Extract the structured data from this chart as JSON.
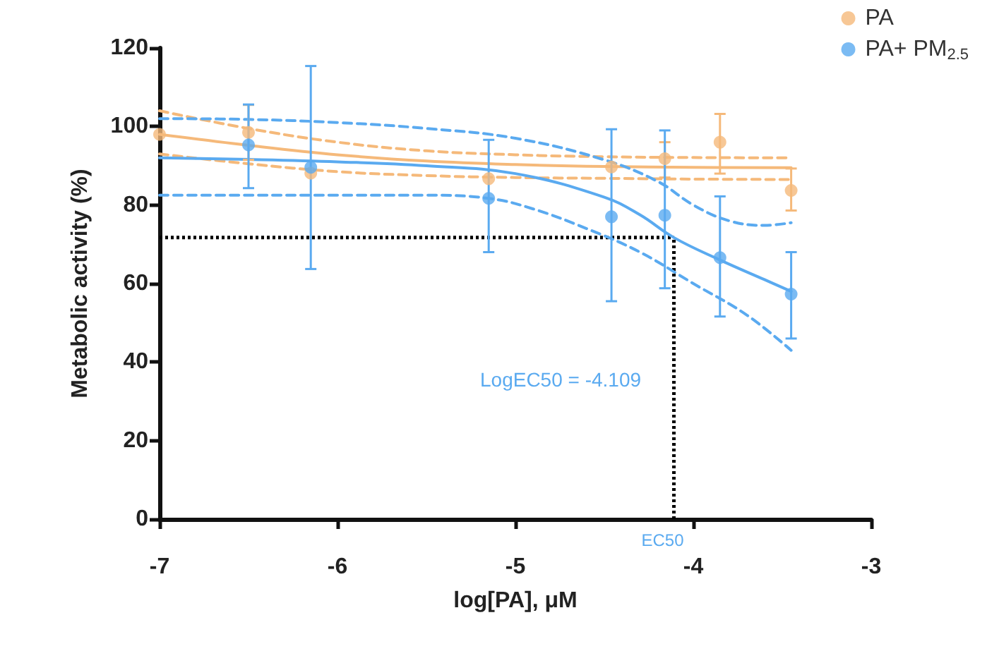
{
  "chart_data": {
    "type": "scatter",
    "xlabel": "log[PA], μM",
    "ylabel": "Metabolic activity (%)",
    "xlim": [
      -7,
      -3
    ],
    "xticks": [
      -7,
      -6,
      -5,
      -4,
      -3
    ],
    "ylim": [
      0,
      120
    ],
    "yticks": [
      0,
      20,
      40,
      60,
      80,
      100,
      120
    ],
    "grid": false,
    "legend": "top right",
    "marker": "circle",
    "series": [
      {
        "name": "PA",
        "color": "#f5b97a",
        "x": [
          -7,
          -6.5,
          -6.15,
          -5.15,
          -4.46,
          -4.16,
          -3.85,
          -3.45
        ],
        "values": [
          98,
          98.5,
          88.1,
          86.7,
          89.7,
          91.8,
          96,
          83.7
        ],
        "errors": [
          null,
          7,
          null,
          null,
          null,
          [
            87,
            96
          ],
          [
            88,
            103.2
          ],
          [
            78.6,
            89.3
          ]
        ]
      },
      {
        "name": "PA+ PM$_{2.5}$",
        "color": "#5aaaf0",
        "x": [
          -6.5,
          -6.15,
          -5.15,
          -4.46,
          -4.16,
          -3.85,
          -3.45
        ],
        "values": [
          95.3,
          89.6,
          81.7,
          77,
          77.4,
          66.6,
          57.3
        ],
        "errors": [
          [
            84.3,
            105.6
          ],
          [
            63.7,
            115.4
          ],
          [
            68,
            96.6
          ],
          [
            55.5,
            99.3
          ],
          [
            58.8,
            99
          ],
          [
            51.6,
            82.2
          ],
          [
            46,
            68
          ]
        ]
      },
      {
        "type": "line",
        "color": "#f5b97a",
        "marker": "none",
        "x": [
          -7,
          -6.5,
          -6,
          -5.5,
          -5,
          -4.5,
          -4,
          -3.45
        ],
        "values": [
          98,
          95.2,
          92.8,
          91.2,
          90.3,
          89.8,
          89.6,
          89.5
        ]
      },
      {
        "type": "line",
        "color": "#f5b97a",
        "marker": "none",
        "line_style": "dashed",
        "x": [
          -7,
          -6.5,
          -6,
          -5.5,
          -5,
          -4.5,
          -4,
          -3.45
        ],
        "values": [
          104,
          99.5,
          96,
          93.8,
          92.8,
          92.3,
          92.1,
          92
        ]
      },
      {
        "type": "line",
        "color": "#f5b97a",
        "marker": "none",
        "line_style": "dashed",
        "x": [
          -7,
          -6.5,
          -6,
          -5.5,
          -5,
          -4.5,
          -4,
          -3.45
        ],
        "values": [
          93,
          90.5,
          88.5,
          87.5,
          87,
          86.8,
          86.6,
          86.5
        ]
      },
      {
        "type": "line",
        "color": "#5aaaf0",
        "marker": "none",
        "x": [
          -7,
          -6.5,
          -6,
          -5.5,
          -5,
          -4.5,
          -4.3,
          -4.109,
          -3.85,
          -3.6,
          -3.45
        ],
        "values": [
          92,
          91.6,
          91,
          90,
          88,
          82,
          77.5,
          71.7,
          66,
          61,
          58
        ]
      },
      {
        "type": "line",
        "color": "#5aaaf0",
        "marker": "none",
        "line_style": "dashed",
        "x": [
          -7,
          -6.5,
          -6,
          -5.5,
          -5,
          -4.5,
          -4.2,
          -4,
          -3.8,
          -3.6,
          -3.45
        ],
        "values": [
          102,
          101.8,
          101,
          99.5,
          97,
          91.5,
          86,
          80,
          76,
          74.8,
          75.5
        ]
      },
      {
        "type": "line",
        "color": "#5aaaf0",
        "marker": "none",
        "line_style": "dashed",
        "x": [
          -7,
          -6.5,
          -6,
          -5.5,
          -5.15,
          -4.9,
          -4.6,
          -4.3,
          -4,
          -3.7,
          -3.45
        ],
        "values": [
          82.5,
          82.5,
          82.5,
          82.5,
          81.7,
          79,
          74,
          68,
          60,
          52,
          43
        ]
      }
    ],
    "ref_lines": [
      {
        "axis": "x",
        "value": -4.109,
        "label": "EC50",
        "color": "#000000",
        "line_style": "dotted"
      },
      {
        "axis": "y",
        "value": 71.7,
        "color": "#000000",
        "line_style": "dotted"
      }
    ],
    "annotations": [
      "LogEC50 = -4.109"
    ]
  }
}
